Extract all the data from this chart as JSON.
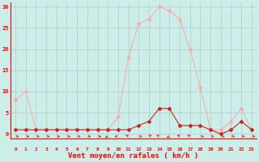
{
  "hours": [
    0,
    1,
    2,
    3,
    4,
    5,
    6,
    7,
    8,
    9,
    10,
    11,
    12,
    13,
    14,
    15,
    16,
    17,
    18,
    19,
    20,
    21,
    22,
    23
  ],
  "vent_moyen": [
    1,
    1,
    1,
    1,
    1,
    1,
    1,
    1,
    1,
    1,
    1,
    1,
    2,
    3,
    6,
    6,
    2,
    2,
    2,
    1,
    0,
    1,
    3,
    1
  ],
  "rafales": [
    8,
    10,
    1,
    1,
    1,
    1,
    1,
    1,
    1,
    1,
    4,
    18,
    26,
    27,
    30,
    29,
    27,
    20,
    11,
    1,
    1,
    3,
    6,
    1
  ],
  "line_moyen_color": "#cc2222",
  "line_rafales_color": "#ffaaaa",
  "xlabel": "Vent moyen/en rafales ( km/h )",
  "ylim": [
    -1,
    31
  ],
  "yticks": [
    0,
    5,
    10,
    15,
    20,
    25,
    30
  ],
  "xlim": [
    -0.5,
    23.5
  ],
  "bg_color": "#cceee8",
  "grid_color": "#aacccc",
  "arrow_dirs": [
    90,
    90,
    90,
    90,
    90,
    90,
    90,
    90,
    90,
    225,
    270,
    315,
    90,
    45,
    315,
    225,
    315,
    315,
    90,
    90,
    90,
    90,
    90,
    90
  ]
}
